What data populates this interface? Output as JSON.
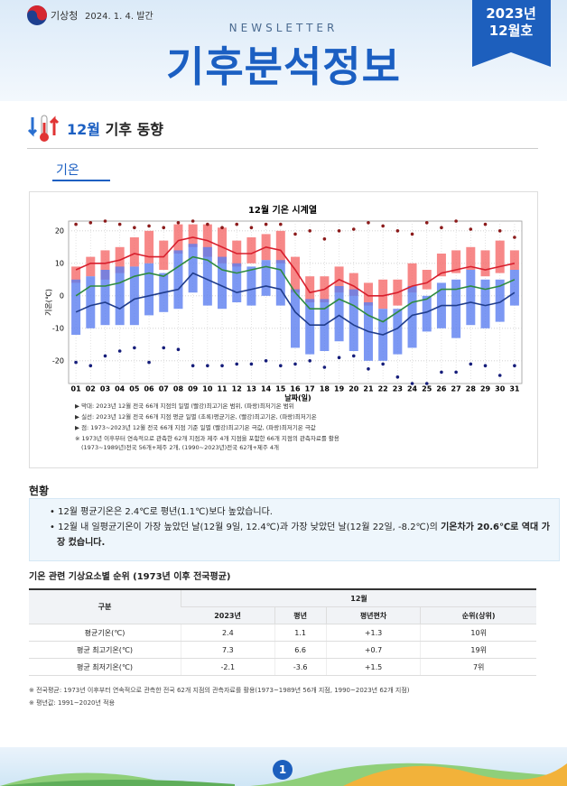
{
  "header": {
    "agency": "기상청",
    "date": "2024. 1. 4. 발간",
    "kicker": "NEWSLETTER",
    "title": "기후분석정보",
    "issue_year": "2023년",
    "issue_month": "12월호"
  },
  "section": {
    "month": "12월",
    "title": "기후 동향",
    "tab": "기온"
  },
  "chart_data": {
    "type": "combo",
    "title": "12월 기온 시계열",
    "xlabel": "날짜(일)",
    "ylabel": "기온(℃)",
    "categories": [
      "01",
      "02",
      "03",
      "04",
      "05",
      "06",
      "07",
      "08",
      "09",
      "10",
      "11",
      "12",
      "13",
      "14",
      "15",
      "16",
      "17",
      "18",
      "19",
      "20",
      "21",
      "22",
      "23",
      "24",
      "25",
      "26",
      "27",
      "28",
      "29",
      "30",
      "31"
    ],
    "ylim": [
      -27,
      23
    ],
    "yticks": [
      -20,
      -10,
      0,
      10,
      20
    ],
    "grid": true,
    "series": [
      {
        "type": "range_bar",
        "color": "#f56a6a",
        "low": [
          4,
          6,
          5,
          7,
          9,
          10,
          8,
          13,
          15,
          12,
          10,
          9,
          10,
          11,
          10,
          1,
          -2,
          -2,
          1,
          0,
          -3,
          -4,
          -3,
          1,
          2,
          6,
          7,
          8,
          6,
          7,
          8
        ],
        "high": [
          9,
          12,
          14,
          15,
          18,
          20,
          17,
          22,
          22,
          22,
          21,
          17,
          18,
          19,
          20,
          12,
          6,
          6,
          9,
          7,
          4,
          5,
          5,
          10,
          8,
          13,
          14,
          15,
          14,
          17,
          14
        ]
      },
      {
        "type": "range_bar",
        "color": "#5b7ef0",
        "low": [
          -12,
          -10,
          -9,
          -9,
          -9,
          -6,
          -5,
          -4,
          1,
          -3,
          -4,
          -2,
          -3,
          0,
          -3,
          -16,
          -18,
          -17,
          -14,
          -17,
          -20,
          -20,
          -18,
          -16,
          -11,
          -10,
          -13,
          -9,
          -10,
          -8,
          -3
        ],
        "high": [
          5,
          6,
          8,
          9,
          9,
          10,
          7,
          14,
          16,
          15,
          12,
          10,
          9,
          11,
          11,
          2,
          -1,
          -1,
          3,
          2,
          -2,
          -4,
          -4,
          3,
          0,
          4,
          5,
          8,
          5,
          5,
          8
        ]
      },
      {
        "type": "line",
        "color": "#d81e2c",
        "values": [
          8,
          10,
          10,
          11,
          13,
          12,
          12,
          17,
          18,
          17,
          15,
          13,
          13,
          15,
          14,
          8,
          1,
          2,
          5,
          3,
          0,
          0,
          1,
          3,
          4,
          7,
          8,
          9,
          8,
          9,
          10
        ]
      },
      {
        "type": "line",
        "color": "#2e8b3e",
        "values": [
          0,
          3,
          3,
          4,
          6,
          7,
          6,
          9,
          12,
          11,
          8,
          7,
          8,
          9,
          8,
          1,
          -4,
          -4,
          -1,
          -3,
          -6,
          -8,
          -5,
          -2,
          -1,
          2,
          2,
          3,
          2,
          3,
          5
        ]
      },
      {
        "type": "line",
        "color": "#1f3c8c",
        "values": [
          -5,
          -3,
          -2,
          -4,
          -1,
          0,
          1,
          2,
          7,
          5,
          3,
          1,
          2,
          3,
          2,
          -5,
          -9,
          -9,
          -6,
          -9,
          -11,
          -12,
          -10,
          -6,
          -5,
          -3,
          -3,
          -2,
          -3,
          -2,
          1
        ]
      },
      {
        "type": "scatter",
        "color": "#8b1a1a",
        "values": [
          22,
          22.5,
          23,
          22,
          21,
          21.5,
          21,
          22.5,
          23,
          22,
          21,
          22,
          21,
          22,
          22,
          19,
          20,
          17.5,
          20,
          20.5,
          22.5,
          21.5,
          20,
          19,
          22.5,
          21,
          23,
          20.5,
          22,
          20,
          18
        ]
      },
      {
        "type": "scatter",
        "color": "#151d7a",
        "values": [
          -20.5,
          -21.5,
          -18.5,
          -17,
          -16,
          -20.5,
          -16,
          -16.5,
          -21.5,
          -21.5,
          -21.5,
          -21,
          -21,
          -20,
          -21.5,
          -21,
          -20,
          -22,
          -19,
          -18.5,
          -22.5,
          -21,
          -25,
          -27,
          -27,
          -23.5,
          -23.5,
          -21,
          -21.5,
          -24.5,
          -21.5
        ]
      }
    ],
    "notes": [
      "▶ 막대: 2023년 12월 전국 66개 지점의 일별 (빨강)최고기온 범위, (파랑)최저기온 범위",
      "▶ 실선: 2023년 12월 전국 66개 지점 평균 일별 (초록)평균기온, (빨강)최고기온, (파랑)최저기온",
      "▶ 점: 1973~2023년 12월 전국 66개 지점 기준 일별 (빨강)최고기온 극값, (파랑)최저기온 극값",
      "※ 1973년 이후부터 연속적으로 관측한 62개 지점과 제주 4개 지점을 포함한 66개 지점의 관측자료를 활용",
      "(1973~1989년)전국 56개+제주 2개, (1990~2023년)전국 62개+제주 4개"
    ]
  },
  "status": {
    "heading": "현황",
    "bullets": [
      "• 12월 평균기온은 2.4℃로 평년(1.1℃)보다 높았습니다.",
      "• 12월 내 일평균기온이 가장 높았던 날(12월 9일, 12.4℃)과 가장 낮았던 날(12월 22일, -8.2℃)의 "
    ],
    "emphasis": "기온차가 20.6℃로 역대 가장 컸습니다."
  },
  "table": {
    "title": "기온 관련 기상요소별 순위 (1973년 이후 전국평균)",
    "header": [
      "구분",
      "12월"
    ],
    "subheader": [
      "2023년",
      "평년",
      "평년편차",
      "순위(상위)"
    ],
    "rows": [
      [
        "평균기온(℃)",
        "2.4",
        "1.1",
        "+1.3",
        "10위"
      ],
      [
        "평균 최고기온(℃)",
        "7.3",
        "6.6",
        "+0.7",
        "19위"
      ],
      [
        "평균 최저기온(℃)",
        "-2.1",
        "-3.6",
        "+1.5",
        "7위"
      ]
    ]
  },
  "footnotes": [
    "※ 전국평균: 1973년 이후부터 연속적으로 관측한 전국 62개 지점의 관측자료를 활용(1973~1989년 56개 지점, 1990~2023년 62개 지점)",
    "※ 평년값: 1991~2020년 적용"
  ],
  "page_number": "1"
}
